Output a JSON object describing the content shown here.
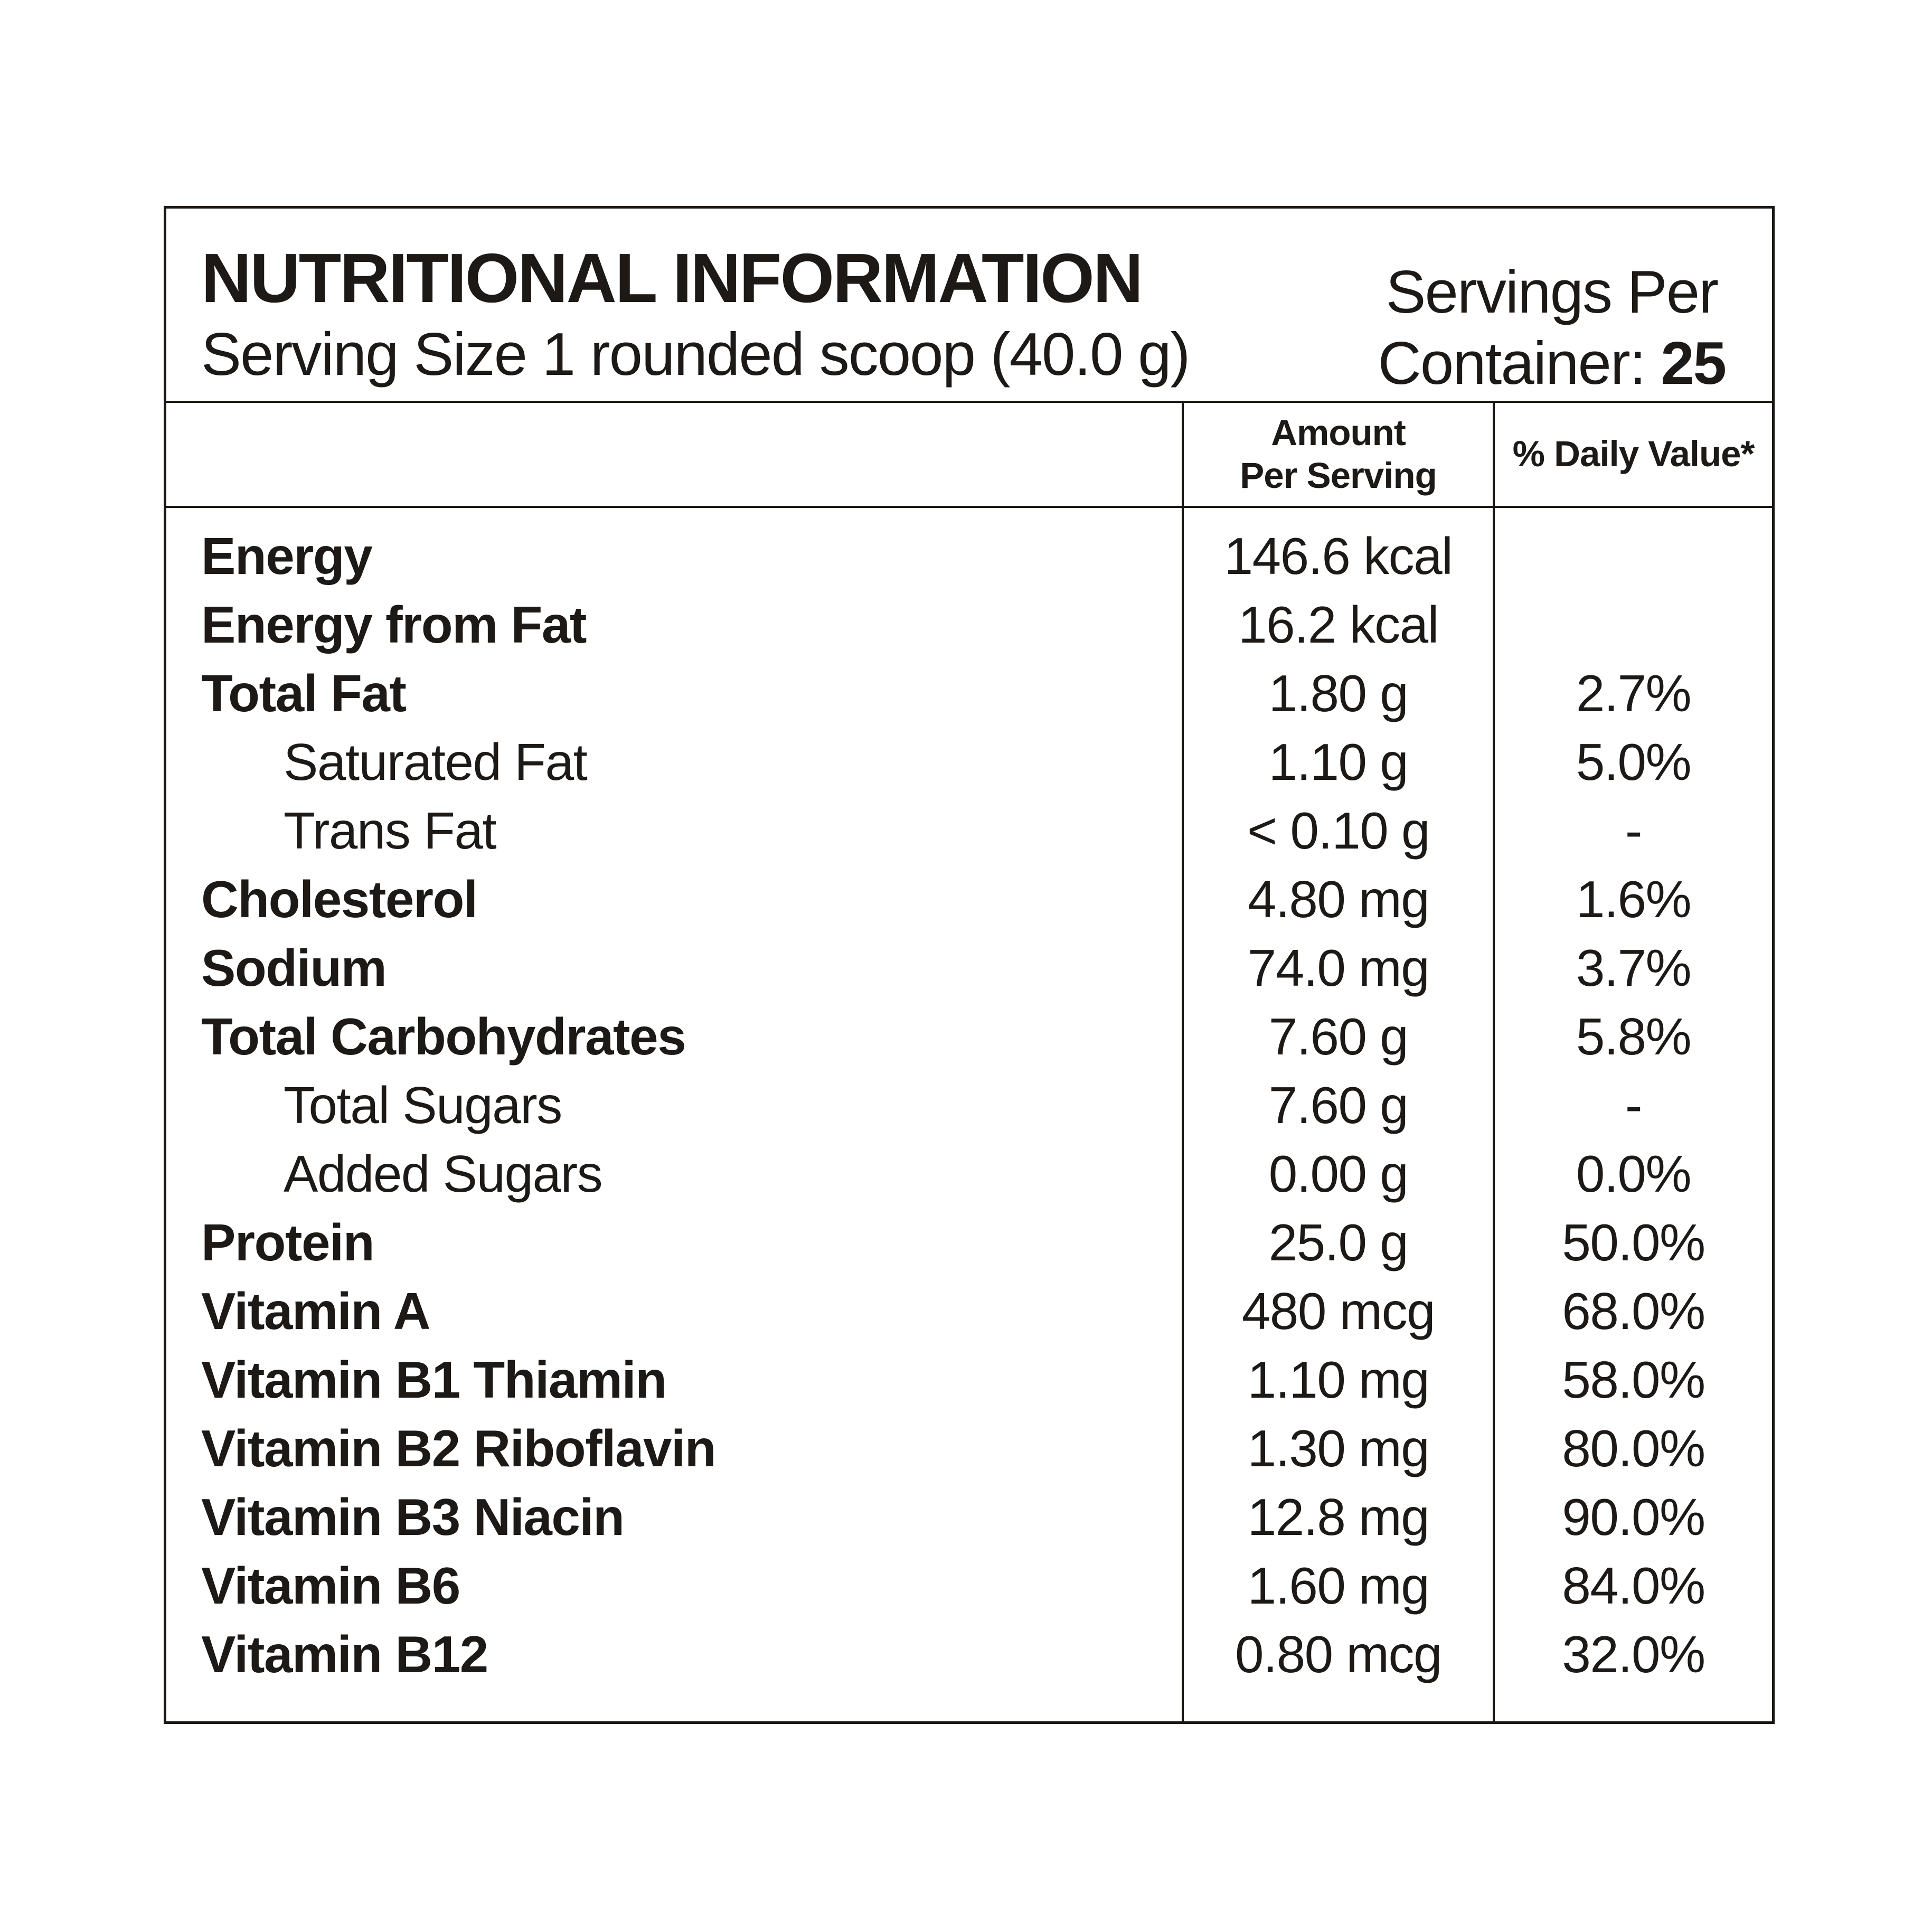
{
  "header": {
    "title": "NUTRITIONAL INFORMATION",
    "serving_size": "Serving Size 1 rounded scoop (40.0 g)",
    "servings_line1": "Servings Per",
    "servings_line2_label": "Container:",
    "servings_count": "25"
  },
  "columns": {
    "amount_line1": "Amount",
    "amount_line2": "Per Serving",
    "daily_value": "% Daily Value*"
  },
  "colors": {
    "text": "#1c1916",
    "border": "#1b1813",
    "background": "#ffffff"
  },
  "table": {
    "rows": [
      {
        "label": "Energy",
        "amount": "146.6 kcal",
        "dv": "",
        "bold": true,
        "indent": false
      },
      {
        "label": "Energy from Fat",
        "amount": "16.2 kcal",
        "dv": "",
        "bold": true,
        "indent": false
      },
      {
        "label": "Total Fat",
        "amount": "1.80 g",
        "dv": "2.7%",
        "bold": true,
        "indent": false
      },
      {
        "label": "Saturated Fat",
        "amount": "1.10 g",
        "dv": "5.0%",
        "bold": false,
        "indent": true
      },
      {
        "label": "Trans Fat",
        "amount": "< 0.10 g",
        "dv": "-",
        "bold": false,
        "indent": true
      },
      {
        "label": "Cholesterol",
        "amount": "4.80 mg",
        "dv": "1.6%",
        "bold": true,
        "indent": false
      },
      {
        "label": "Sodium",
        "amount": "74.0 mg",
        "dv": "3.7%",
        "bold": true,
        "indent": false
      },
      {
        "label": "Total Carbohydrates",
        "amount": "7.60 g",
        "dv": "5.8%",
        "bold": true,
        "indent": false
      },
      {
        "label": "Total Sugars",
        "amount": "7.60 g",
        "dv": "-",
        "bold": false,
        "indent": true
      },
      {
        "label": "Added Sugars",
        "amount": "0.00 g",
        "dv": "0.0%",
        "bold": false,
        "indent": true
      },
      {
        "label": "Protein",
        "amount": "25.0 g",
        "dv": "50.0%",
        "bold": true,
        "indent": false
      },
      {
        "label": "Vitamin A",
        "amount": "480 mcg",
        "dv": "68.0%",
        "bold": true,
        "indent": false
      },
      {
        "label": "Vitamin B1 Thiamin",
        "amount": "1.10 mg",
        "dv": "58.0%",
        "bold": true,
        "indent": false
      },
      {
        "label": "Vitamin B2 Riboflavin",
        "amount": "1.30 mg",
        "dv": "80.0%",
        "bold": true,
        "indent": false
      },
      {
        "label": "Vitamin B3 Niacin",
        "amount": "12.8 mg",
        "dv": "90.0%",
        "bold": true,
        "indent": false
      },
      {
        "label": "Vitamin B6",
        "amount": "1.60 mg",
        "dv": "84.0%",
        "bold": true,
        "indent": false
      },
      {
        "label": "Vitamin B12",
        "amount": "0.80 mcg",
        "dv": "32.0%",
        "bold": true,
        "indent": false
      }
    ]
  }
}
